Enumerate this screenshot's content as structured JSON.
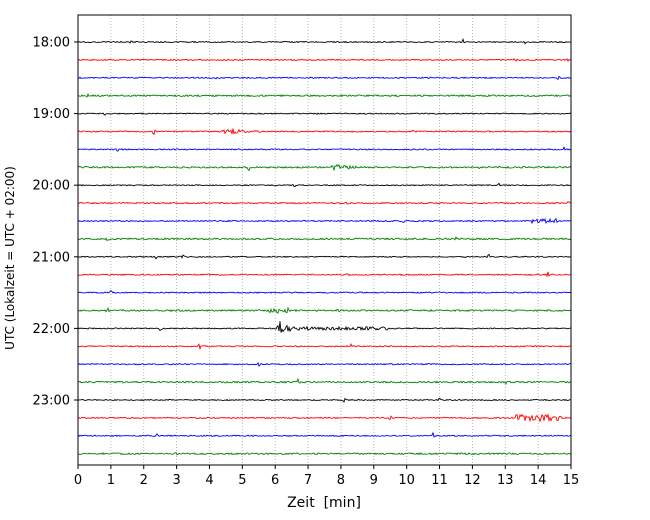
{
  "chart_data": {
    "type": "line",
    "subtype": "helicorder-dayplot",
    "xlabel": "Zeit  [min]",
    "ylabel": "UTC (Lokalzeit = UTC + 02:00)",
    "xlim": [
      0,
      15
    ],
    "minutes_per_line": 15,
    "x_ticks": [
      0,
      1,
      2,
      3,
      4,
      5,
      6,
      7,
      8,
      9,
      10,
      11,
      12,
      13,
      14,
      15
    ],
    "hour_labels": [
      "18:00",
      "19:00",
      "20:00",
      "21:00",
      "22:00",
      "23:00"
    ],
    "grid": true,
    "grid_color": "#aaaaaa",
    "background_color": "#ffffff",
    "border_color": "#000000",
    "color_cycle": [
      "#000000",
      "#ff0000",
      "#0000ff",
      "#008000"
    ],
    "traces": [
      {
        "start": "18:00",
        "noise": 0.55,
        "events": [
          {
            "t": "spike",
            "x": 1.6,
            "amp": 2.2
          },
          {
            "t": "spike",
            "x": 11.7,
            "amp": 3.5
          },
          {
            "t": "spike",
            "x": 13.6,
            "amp": 1.5
          }
        ]
      },
      {
        "start": "18:15",
        "noise": 0.6,
        "events": [
          {
            "t": "spike",
            "x": 13.3,
            "amp": 2.2
          },
          {
            "t": "spike",
            "x": 14.9,
            "amp": 2.0
          }
        ]
      },
      {
        "start": "18:30",
        "noise": 0.6,
        "events": [
          {
            "t": "spike",
            "x": 4.2,
            "amp": 1.8
          },
          {
            "t": "spike",
            "x": 14.6,
            "amp": 2.8
          }
        ]
      },
      {
        "start": "18:45",
        "noise": 0.8,
        "events": [
          {
            "t": "spike",
            "x": 0.3,
            "amp": 1.5
          },
          {
            "t": "spike",
            "x": 5.9,
            "amp": 2.0
          }
        ]
      },
      {
        "start": "19:00",
        "noise": 0.55,
        "events": [
          {
            "t": "spike",
            "x": 0.8,
            "amp": 2.8
          },
          {
            "t": "spike",
            "x": 7.3,
            "amp": 1.8
          }
        ]
      },
      {
        "start": "19:15",
        "noise": 0.6,
        "events": [
          {
            "t": "spike",
            "x": 2.3,
            "amp": 2.8
          },
          {
            "t": "burst",
            "x": 4.5,
            "amp": 5.0,
            "decay": 0.3
          },
          {
            "t": "spike",
            "x": 10.2,
            "amp": 1.5
          }
        ]
      },
      {
        "start": "19:30",
        "noise": 0.6,
        "events": [
          {
            "t": "spike",
            "x": 1.2,
            "amp": 1.3
          },
          {
            "t": "spike",
            "x": 14.8,
            "amp": 2.0
          }
        ]
      },
      {
        "start": "19:45",
        "noise": 0.8,
        "events": [
          {
            "t": "spike",
            "x": 5.2,
            "amp": 2.5
          },
          {
            "t": "burst",
            "x": 7.8,
            "amp": 4.0,
            "decay": 0.3
          },
          {
            "t": "spike",
            "x": 12.2,
            "amp": 1.5
          }
        ]
      },
      {
        "start": "20:00",
        "noise": 0.55,
        "events": [
          {
            "t": "spike",
            "x": 6.6,
            "amp": 2.8
          },
          {
            "t": "spike",
            "x": 12.8,
            "amp": 2.2
          }
        ]
      },
      {
        "start": "20:15",
        "noise": 0.6,
        "events": [
          {
            "t": "spike",
            "x": 8.2,
            "amp": 2.8
          },
          {
            "t": "spike",
            "x": 14.9,
            "amp": 2.2
          }
        ]
      },
      {
        "start": "20:30",
        "noise": 0.6,
        "events": [
          {
            "t": "spike",
            "x": 9.9,
            "amp": 2.2
          },
          {
            "t": "band",
            "x": 13.8,
            "x1": 14.6,
            "amp": 1.8
          }
        ]
      },
      {
        "start": "20:45",
        "noise": 0.8,
        "events": [
          {
            "t": "spike",
            "x": 0.9,
            "amp": 2.5
          },
          {
            "t": "spike",
            "x": 11.5,
            "amp": 1.8
          }
        ]
      },
      {
        "start": "21:00",
        "noise": 0.55,
        "events": [
          {
            "t": "spike",
            "x": 2.4,
            "amp": 2.5
          },
          {
            "t": "spike",
            "x": 3.2,
            "amp": 3.2
          },
          {
            "t": "spike",
            "x": 12.5,
            "amp": 2.0
          }
        ]
      },
      {
        "start": "21:15",
        "noise": 0.6,
        "events": [
          {
            "t": "spike",
            "x": 4.0,
            "amp": 1.8
          },
          {
            "t": "spike",
            "x": 8.2,
            "amp": 2.8
          },
          {
            "t": "spike",
            "x": 14.3,
            "amp": 2.5
          }
        ]
      },
      {
        "start": "21:30",
        "noise": 0.6,
        "events": [
          {
            "t": "spike",
            "x": 1.0,
            "amp": 1.8
          }
        ]
      },
      {
        "start": "21:45",
        "noise": 0.8,
        "events": [
          {
            "t": "spike",
            "x": 0.9,
            "amp": 3.0
          },
          {
            "t": "band",
            "x": 5.8,
            "x1": 6.4,
            "amp": 2.0
          },
          {
            "t": "spike",
            "x": 7.9,
            "amp": 1.8
          }
        ]
      },
      {
        "start": "22:00",
        "noise": 0.55,
        "events": [
          {
            "t": "spike",
            "x": 2.5,
            "amp": 2.5
          },
          {
            "t": "burst",
            "x": 6.15,
            "amp": 8.0,
            "decay": 0.15
          },
          {
            "t": "band",
            "x": 6.3,
            "x1": 9.5,
            "amp": 1.2
          }
        ]
      },
      {
        "start": "22:15",
        "noise": 0.6,
        "events": [
          {
            "t": "spike",
            "x": 3.7,
            "amp": 2.5
          },
          {
            "t": "spike",
            "x": 8.3,
            "amp": 2.5
          }
        ]
      },
      {
        "start": "22:30",
        "noise": 0.6,
        "events": [
          {
            "t": "spike",
            "x": 5.5,
            "amp": 1.5
          }
        ]
      },
      {
        "start": "22:45",
        "noise": 0.8,
        "events": [
          {
            "t": "spike",
            "x": 6.7,
            "amp": 2.5
          },
          {
            "t": "spike",
            "x": 13.0,
            "amp": 1.5
          }
        ]
      },
      {
        "start": "23:00",
        "noise": 0.55,
        "events": [
          {
            "t": "spike",
            "x": 8.1,
            "amp": 2.5
          },
          {
            "t": "spike",
            "x": 11.0,
            "amp": 1.5
          }
        ]
      },
      {
        "start": "23:15",
        "noise": 0.6,
        "events": [
          {
            "t": "spike",
            "x": 9.5,
            "amp": 1.8
          },
          {
            "t": "band",
            "x": 13.3,
            "x1": 14.7,
            "amp": 3.0
          }
        ]
      },
      {
        "start": "23:30",
        "noise": 0.6,
        "events": [
          {
            "t": "spike",
            "x": 2.4,
            "amp": 2.2
          },
          {
            "t": "spike",
            "x": 10.8,
            "amp": 2.8
          }
        ]
      },
      {
        "start": "23:45",
        "noise": 0.8,
        "events": [
          {
            "t": "spike",
            "x": 3.0,
            "amp": 1.2
          }
        ]
      }
    ]
  }
}
